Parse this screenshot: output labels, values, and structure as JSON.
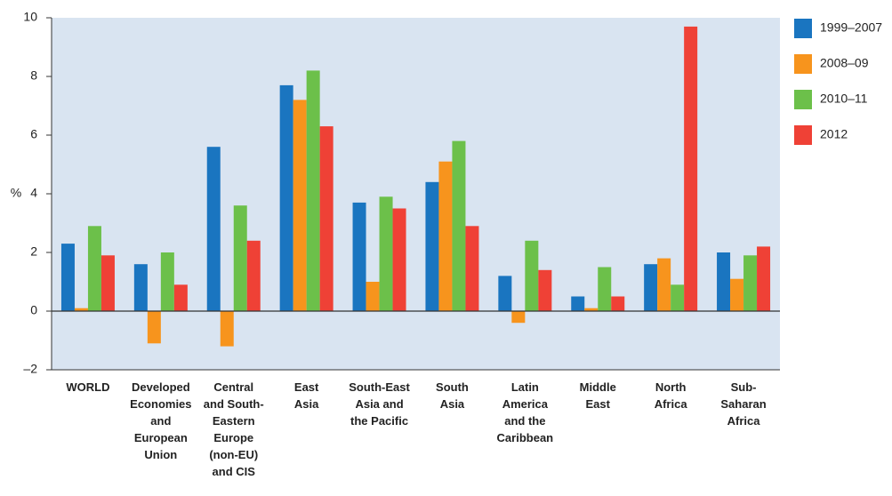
{
  "chart_data": {
    "type": "bar",
    "ylabel": "%",
    "categories": [
      "WORLD",
      "Developed\nEconomies\nand\nEuropean\nUnion",
      "Central\nand South-\nEastern\nEurope\n(non-EU)\nand CIS",
      "East\nAsia",
      "South-East\nAsia and\nthe Pacific",
      "South\nAsia",
      "Latin\nAmerica\nand the\nCaribbean",
      "Middle\nEast",
      "North\nAfrica",
      "Sub-\nSaharan\nAfrica"
    ],
    "series": [
      {
        "name": "1999–2007",
        "color": "#1a75c0",
        "values": [
          2.3,
          1.6,
          5.6,
          7.7,
          3.7,
          4.4,
          1.2,
          0.5,
          1.6,
          2.0
        ]
      },
      {
        "name": "2008–09",
        "color": "#f7941d",
        "values": [
          0.1,
          -1.1,
          -1.2,
          7.2,
          1.0,
          5.1,
          -0.4,
          0.1,
          1.8,
          1.1
        ]
      },
      {
        "name": "2010–11",
        "color": "#6cc04a",
        "values": [
          2.9,
          2.0,
          3.6,
          8.2,
          3.9,
          5.8,
          2.4,
          1.5,
          0.9,
          1.9
        ]
      },
      {
        "name": "2012",
        "color": "#ef4136",
        "values": [
          1.9,
          0.9,
          2.4,
          6.3,
          3.5,
          2.9,
          1.4,
          0.5,
          9.7,
          2.2
        ]
      }
    ],
    "ylim": [
      -2,
      10
    ],
    "yticks": [
      {
        "value": -2,
        "label": "–2"
      },
      0,
      2,
      4,
      6,
      8,
      10
    ],
    "legend": "right"
  }
}
